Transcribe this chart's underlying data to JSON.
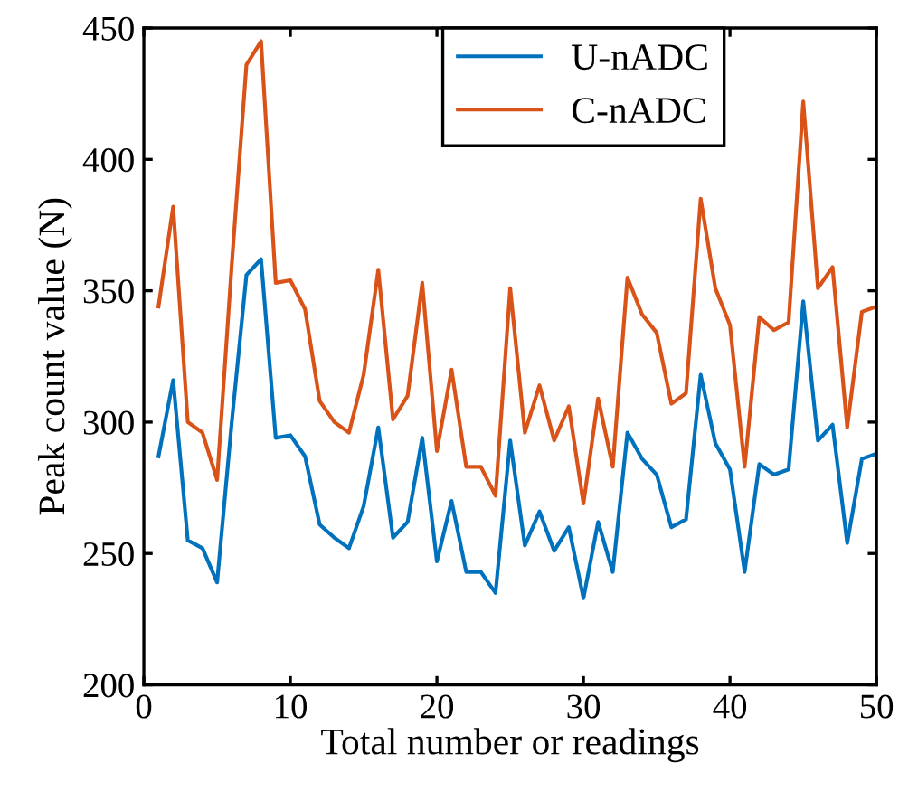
{
  "chart_data": {
    "type": "line",
    "xlabel": "Total number or readings",
    "ylabel": "Peak count value (N)",
    "x": [
      1,
      2,
      3,
      4,
      5,
      6,
      7,
      8,
      9,
      10,
      11,
      12,
      13,
      14,
      15,
      16,
      17,
      18,
      19,
      20,
      21,
      22,
      23,
      24,
      25,
      26,
      27,
      28,
      29,
      30,
      31,
      32,
      33,
      34,
      35,
      36,
      37,
      38,
      39,
      40,
      41,
      42,
      43,
      44,
      45,
      46,
      47,
      48,
      49,
      50
    ],
    "series": [
      {
        "name": "U-nADC",
        "color": "#0072bd",
        "values": [
          287,
          316,
          255,
          252,
          239,
          300,
          356,
          362,
          294,
          295,
          287,
          261,
          256,
          252,
          268,
          298,
          256,
          262,
          294,
          247,
          270,
          243,
          243,
          235,
          293,
          253,
          266,
          251,
          260,
          233,
          262,
          243,
          296,
          286,
          280,
          260,
          263,
          318,
          292,
          282,
          243,
          284,
          280,
          282,
          346,
          293,
          299,
          254,
          286,
          288
        ]
      },
      {
        "name": "C-nADC",
        "color": "#d95319",
        "values": [
          344,
          382,
          300,
          296,
          278,
          360,
          436,
          445,
          353,
          354,
          343,
          308,
          300,
          296,
          318,
          358,
          301,
          310,
          353,
          289,
          320,
          283,
          283,
          272,
          351,
          296,
          314,
          293,
          306,
          269,
          309,
          283,
          355,
          341,
          334,
          307,
          311,
          385,
          351,
          337,
          283,
          340,
          335,
          338,
          422,
          351,
          359,
          298,
          342,
          344
        ]
      }
    ],
    "xlim": [
      0,
      50
    ],
    "xticks": [
      0,
      10,
      20,
      30,
      40,
      50
    ],
    "ylim": [
      200,
      450
    ],
    "yticks": [
      200,
      250,
      300,
      350,
      400,
      450
    ],
    "grid": false,
    "legend": "top",
    "marker": "none",
    "line_style": "solid"
  }
}
